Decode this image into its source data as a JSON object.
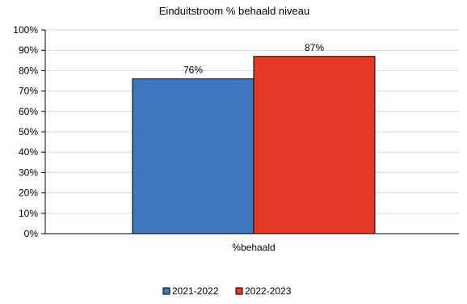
{
  "chart_data": {
    "type": "bar",
    "title": "Einduitstroom % behaald niveau",
    "categories": [
      "%behaald"
    ],
    "series": [
      {
        "name": "2021-2022",
        "values": [
          76
        ],
        "color": "#3d78bf"
      },
      {
        "name": "2022-2023",
        "values": [
          87
        ],
        "color": "#e53a26"
      }
    ],
    "data_labels": [
      "76%",
      "87%"
    ],
    "ylim": [
      0,
      100
    ],
    "y_ticks": [
      "0%",
      "10%",
      "20%",
      "30%",
      "40%",
      "50%",
      "60%",
      "70%",
      "80%",
      "90%",
      "100%"
    ],
    "grid": true,
    "legend": "bottom"
  }
}
